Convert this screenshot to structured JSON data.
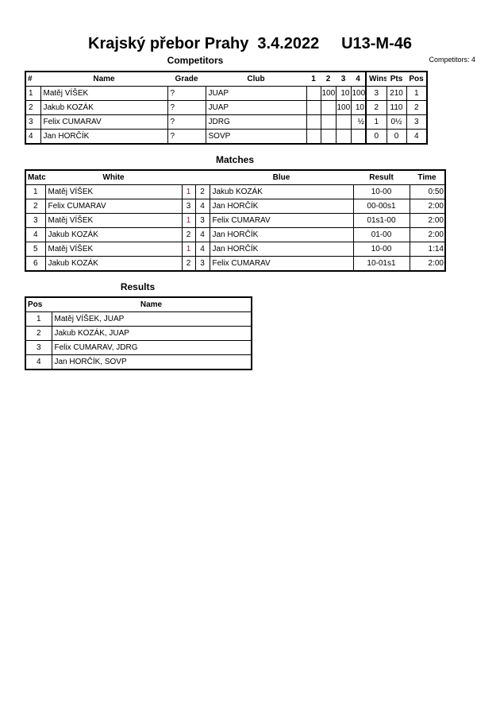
{
  "header": {
    "title": "Krajský přebor Prahy  3.4.2022     U13-M-46",
    "competitors_count": "Competitors: 4"
  },
  "competitors": {
    "heading": "Competitors",
    "columns": [
      "#",
      "Name",
      "Grade",
      "Club",
      "1",
      "2",
      "3",
      "4",
      "Wins",
      "Pts",
      "Pos"
    ],
    "rows": [
      [
        "1",
        "Matěj VÍŠEK",
        "?",
        "JUAP",
        "",
        "100",
        "10",
        "100",
        "3",
        "210",
        "1"
      ],
      [
        "2",
        "Jakub KOZÁK",
        "?",
        "JUAP",
        "",
        "",
        "100",
        "10",
        "2",
        "110",
        "2"
      ],
      [
        "3",
        "Felix CUMARAV",
        "?",
        "JDRG",
        "",
        "",
        "",
        "½",
        "1",
        "0½",
        "3"
      ],
      [
        "4",
        "Jan HORČÍK",
        "?",
        "SOVP",
        "",
        "",
        "",
        "",
        "0",
        "0",
        "4"
      ]
    ]
  },
  "matches": {
    "heading": "Matches",
    "columns": [
      "Match",
      "White",
      "Blue",
      "Result",
      "Time"
    ],
    "rows": [
      {
        "no": "1",
        "white": "Matěj VÍŠEK",
        "wn": "1",
        "bn": "2",
        "blue": "Jakub KOZÁK",
        "result": "10-00",
        "time": "0:50",
        "winner": "white"
      },
      {
        "no": "2",
        "white": "Felix CUMARAV",
        "wn": "3",
        "bn": "4",
        "blue": "Jan HORČÍK",
        "result": "00-00s1",
        "time": "2:00",
        "winner": ""
      },
      {
        "no": "3",
        "white": "Matěj VÍŠEK",
        "wn": "1",
        "bn": "3",
        "blue": "Felix CUMARAV",
        "result": "01s1-00",
        "time": "2:00",
        "winner": "white"
      },
      {
        "no": "4",
        "white": "Jakub KOZÁK",
        "wn": "2",
        "bn": "4",
        "blue": "Jan HORČÍK",
        "result": "01-00",
        "time": "2:00",
        "winner": ""
      },
      {
        "no": "5",
        "white": "Matěj VÍŠEK",
        "wn": "1",
        "bn": "4",
        "blue": "Jan HORČÍK",
        "result": "10-00",
        "time": "1:14",
        "winner": "white"
      },
      {
        "no": "6",
        "white": "Jakub KOZÁK",
        "wn": "2",
        "bn": "3",
        "blue": "Felix CUMARAV",
        "result": "10-01s1",
        "time": "2:00",
        "winner": ""
      }
    ],
    "winner_color": "#8b1a3a"
  },
  "results": {
    "heading": "Results",
    "columns": [
      "Pos",
      "Name"
    ],
    "rows": [
      [
        "1",
        "Matěj VÍŠEK, JUAP"
      ],
      [
        "2",
        "Jakub KOZÁK, JUAP"
      ],
      [
        "3",
        "Felix CUMARAV, JDRG"
      ],
      [
        "4",
        "Jan HORČÍK, SOVP"
      ]
    ]
  }
}
